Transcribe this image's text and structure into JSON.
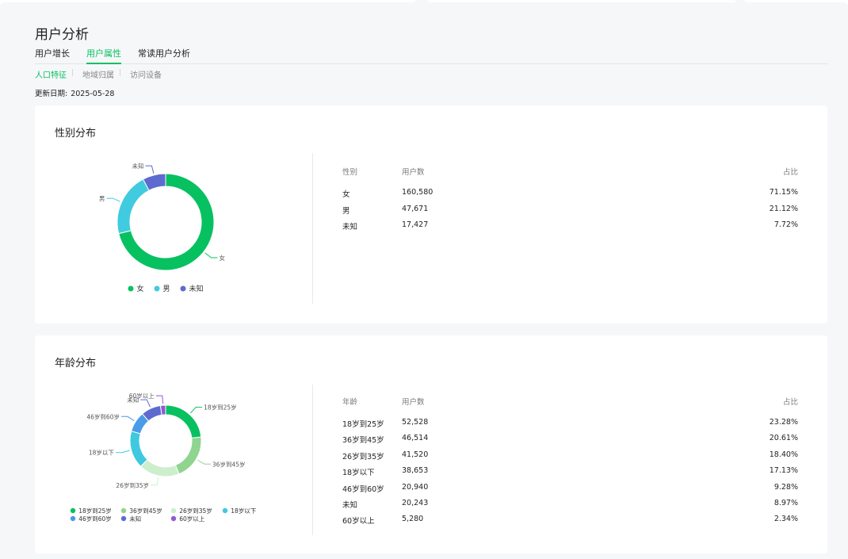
{
  "page": {
    "title": "用户分析",
    "main_tabs": [
      "用户增长",
      "用户属性",
      "常读用户分析"
    ],
    "active_main_tab": 1,
    "sub_tabs": [
      "人口特征",
      "地域归属",
      "访问设备"
    ],
    "active_sub_tab": 0,
    "update_label": "更新日期:",
    "update_date": "2025-05-28"
  },
  "gender": {
    "title": "性别分布",
    "headers": {
      "category": "性别",
      "users": "用户数",
      "ratio": "占比"
    },
    "rows": [
      {
        "label": "女",
        "users": "160,580",
        "ratio": "71.15%"
      },
      {
        "label": "男",
        "users": "47,671",
        "ratio": "21.12%"
      },
      {
        "label": "未知",
        "users": "17,427",
        "ratio": "7.72%"
      }
    ]
  },
  "age": {
    "title": "年龄分布",
    "headers": {
      "category": "年龄",
      "users": "用户数",
      "ratio": "占比"
    },
    "rows": [
      {
        "label": "18岁到25岁",
        "users": "52,528",
        "ratio": "23.28%"
      },
      {
        "label": "36岁到45岁",
        "users": "46,514",
        "ratio": "20.61%"
      },
      {
        "label": "26岁到35岁",
        "users": "41,520",
        "ratio": "18.40%"
      },
      {
        "label": "18岁以下",
        "users": "38,653",
        "ratio": "17.13%"
      },
      {
        "label": "46岁到60岁",
        "users": "20,940",
        "ratio": "9.28%"
      },
      {
        "label": "未知",
        "users": "20,243",
        "ratio": "8.97%"
      },
      {
        "label": "60岁以上",
        "users": "5,280",
        "ratio": "2.34%"
      }
    ]
  },
  "chart_data": [
    {
      "type": "pie",
      "donut": true,
      "categories": [
        "女",
        "男",
        "未知"
      ],
      "values": [
        160580,
        47671,
        17427
      ],
      "colors": [
        "#07c160",
        "#40cbe0",
        "#5d6bd0"
      ],
      "legend": [
        "女",
        "男",
        "未知"
      ],
      "legend_position": "bottom"
    },
    {
      "type": "pie",
      "donut": true,
      "categories": [
        "18岁到25岁",
        "36岁到45岁",
        "26岁到35岁",
        "18岁以下",
        "46岁到60岁",
        "未知",
        "60岁以上"
      ],
      "values": [
        52528,
        46514,
        41520,
        38653,
        20940,
        20243,
        5280
      ],
      "colors": [
        "#07c160",
        "#8fd48f",
        "#cdeecd",
        "#3fc8e0",
        "#4a9be8",
        "#5d6bd0",
        "#8e5bd3"
      ],
      "legend": [
        "18岁到25岁",
        "36岁到45岁",
        "26岁到35岁",
        "18岁以下",
        "46岁到60岁",
        "未知",
        "60岁以上"
      ],
      "legend_position": "bottom"
    }
  ]
}
